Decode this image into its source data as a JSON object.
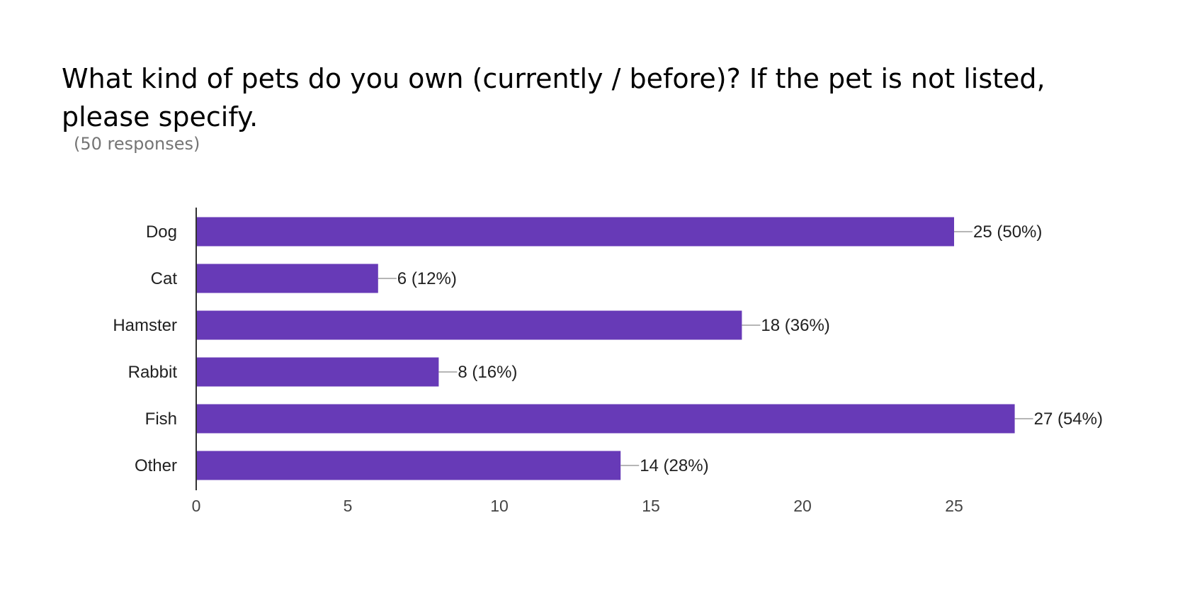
{
  "header": {
    "title": "What kind of pets do you own (currently / before)? If the pet is not listed, please specify.",
    "subtitle": "(50 responses)"
  },
  "colors": {
    "bar": "#673ab7",
    "axis": "#333333",
    "leader": "#9e9e9e"
  },
  "chart_data": {
    "type": "bar",
    "orientation": "horizontal",
    "title": "What kind of pets do you own (currently / before)? If the pet is not listed, please specify.",
    "subtitle": "(50 responses)",
    "categories": [
      "Dog",
      "Cat",
      "Hamster",
      "Rabbit",
      "Fish",
      "Other"
    ],
    "values": [
      25,
      6,
      18,
      8,
      27,
      14
    ],
    "data_labels": [
      "25 (50%)",
      "6 (12%)",
      "18 (36%)",
      "8 (16%)",
      "27 (54%)",
      "14 (28%)"
    ],
    "xticks": [
      0,
      5,
      10,
      15,
      20,
      25
    ],
    "xlim": [
      0,
      27
    ],
    "xlabel": "",
    "ylabel": "",
    "grid": false,
    "legend": "none"
  }
}
